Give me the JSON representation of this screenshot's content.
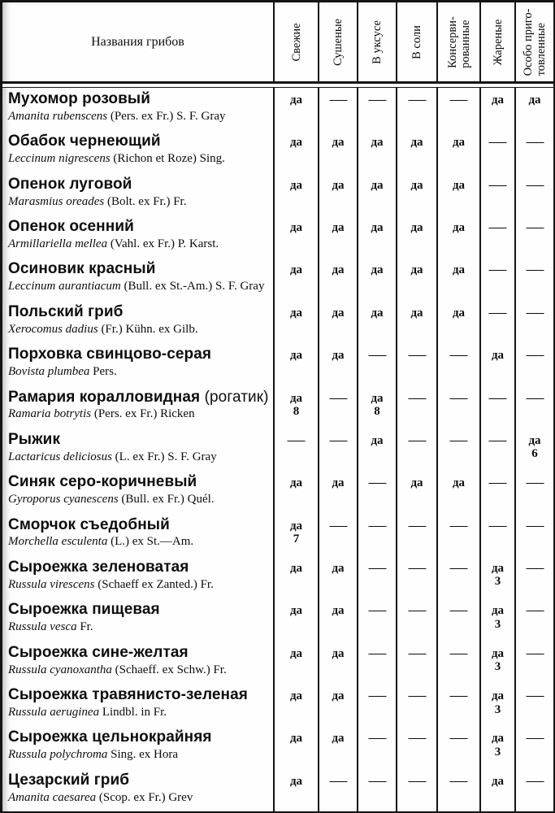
{
  "page": {
    "background": "#fefefe",
    "ink": "#141414"
  },
  "table": {
    "name_header": "Названия грибов",
    "yes_label": "да",
    "no_mark": "—",
    "columns": [
      "Свежие",
      "Сушеные",
      "В уксусе",
      "В соли",
      "Консерви-\nрованные",
      "Жареные",
      "Особо приго-\nтовленные"
    ],
    "rows": [
      {
        "name": "Мухомор розовый",
        "suffix": "",
        "latin_italic": "Amanita rubenscens",
        "latin_roman": "(Pers. ex Fr.) S. F. Gray",
        "values": [
          "да",
          "—",
          "—",
          "—",
          "—",
          "да",
          "да"
        ]
      },
      {
        "name": "Обабок чернеющий",
        "suffix": "",
        "latin_italic": "Leccinum nigrescens",
        "latin_roman": "(Richon et Roze) Sing.",
        "values": [
          "да",
          "да",
          "да",
          "да",
          "да",
          "—",
          "—"
        ]
      },
      {
        "name": "Опенок луговой",
        "suffix": "",
        "latin_italic": "Marasmius oreades",
        "latin_roman": "(Bolt. ex Fr.) Fr.",
        "values": [
          "да",
          "да",
          "да",
          "да",
          "да",
          "—",
          "—"
        ]
      },
      {
        "name": "Опенок осенний",
        "suffix": "",
        "latin_italic": "Armillariella mellea",
        "latin_roman": "(Vahl. ex Fr.) P. Karst.",
        "values": [
          "да",
          "да",
          "да",
          "да",
          "да",
          "—",
          "—"
        ]
      },
      {
        "name": "Осиновик красный",
        "suffix": "",
        "latin_italic": "Leccinum aurantiacum",
        "latin_roman": "(Bull. ex St.-Am.) S. F. Gray",
        "values": [
          "да",
          "да",
          "да",
          "да",
          "да",
          "—",
          "—"
        ]
      },
      {
        "name": "Польский гриб",
        "suffix": "",
        "latin_italic": "Xerocomus dadius",
        "latin_roman": "(Fr.) Kühn. ex Gilb.",
        "values": [
          "да",
          "да",
          "да",
          "да",
          "да",
          "—",
          "—"
        ]
      },
      {
        "name": "Порховка свинцово-серая",
        "suffix": "",
        "latin_italic": "Bovista plumbea",
        "latin_roman": "Pers.",
        "values": [
          "да",
          "да",
          "—",
          "—",
          "—",
          "да",
          "—"
        ]
      },
      {
        "name": "Рамария коралловидная",
        "suffix": " (рогатик)",
        "latin_italic": "Ramaria botrytis",
        "latin_roman": "(Pers. ex Fr.) Ricken",
        "values": [
          "да\n8",
          "—",
          "да\n8",
          "—",
          "—",
          "—",
          "—"
        ]
      },
      {
        "name": "Рыжик",
        "suffix": "",
        "latin_italic": "Lactaricus deliciosus",
        "latin_roman": "(L. ex Fr.) S. F. Gray",
        "values": [
          "—",
          "—",
          "да",
          "—",
          "—",
          "—",
          "да\n6"
        ]
      },
      {
        "name": "Синяк серо-коричневый",
        "suffix": "",
        "latin_italic": "Gyroporus cyanescens",
        "latin_roman": "(Bull. ex Fr.) Quél.",
        "values": [
          "да",
          "да",
          "—",
          "да",
          "да",
          "—",
          "—"
        ]
      },
      {
        "name": "Сморчок съедобный",
        "suffix": "",
        "latin_italic": "Morchella esculenta",
        "latin_roman": "(L.) ex St.—Am.",
        "values": [
          "да\n7",
          "—",
          "—",
          "—",
          "—",
          "—",
          "—"
        ]
      },
      {
        "name": "Сыроежка зеленоватая",
        "suffix": "",
        "latin_italic": "Russula virescens",
        "latin_roman": "(Schaeff ex Zanted.) Fr.",
        "values": [
          "да",
          "да",
          "—",
          "—",
          "—",
          "да\n3",
          "—"
        ]
      },
      {
        "name": "Сыроежка пищевая",
        "suffix": "",
        "latin_italic": "Russula vesca",
        "latin_roman": "Fr.",
        "values": [
          "да",
          "да",
          "—",
          "—",
          "—",
          "да\n3",
          "—"
        ]
      },
      {
        "name": "Сыроежка сине-желтая",
        "suffix": "",
        "latin_italic": "Russula cyanoxantha",
        "latin_roman": "(Schaeff. ex Schw.) Fr.",
        "values": [
          "да",
          "да",
          "—",
          "—",
          "—",
          "да\n3",
          "—"
        ]
      },
      {
        "name": "Сыроежка травянисто-зеленая",
        "suffix": "",
        "latin_italic": "Russula aeruginea",
        "latin_roman": "Lindbl. in Fr.",
        "values": [
          "да",
          "да",
          "—",
          "—",
          "—",
          "да\n3",
          "—"
        ]
      },
      {
        "name": "Сыроежка цельнокрайняя",
        "suffix": "",
        "latin_italic": "Russula polychroma",
        "latin_roman": "Sing. ex Hora",
        "values": [
          "да",
          "да",
          "—",
          "—",
          "—",
          "да\n3",
          "—"
        ]
      },
      {
        "name": "Цезарский гриб",
        "suffix": "",
        "latin_italic": "Amanita caesarea",
        "latin_roman": "(Scop. ex Fr.) Grev",
        "values": [
          "да",
          "—",
          "—",
          "—",
          "—",
          "да",
          "—"
        ]
      }
    ]
  }
}
